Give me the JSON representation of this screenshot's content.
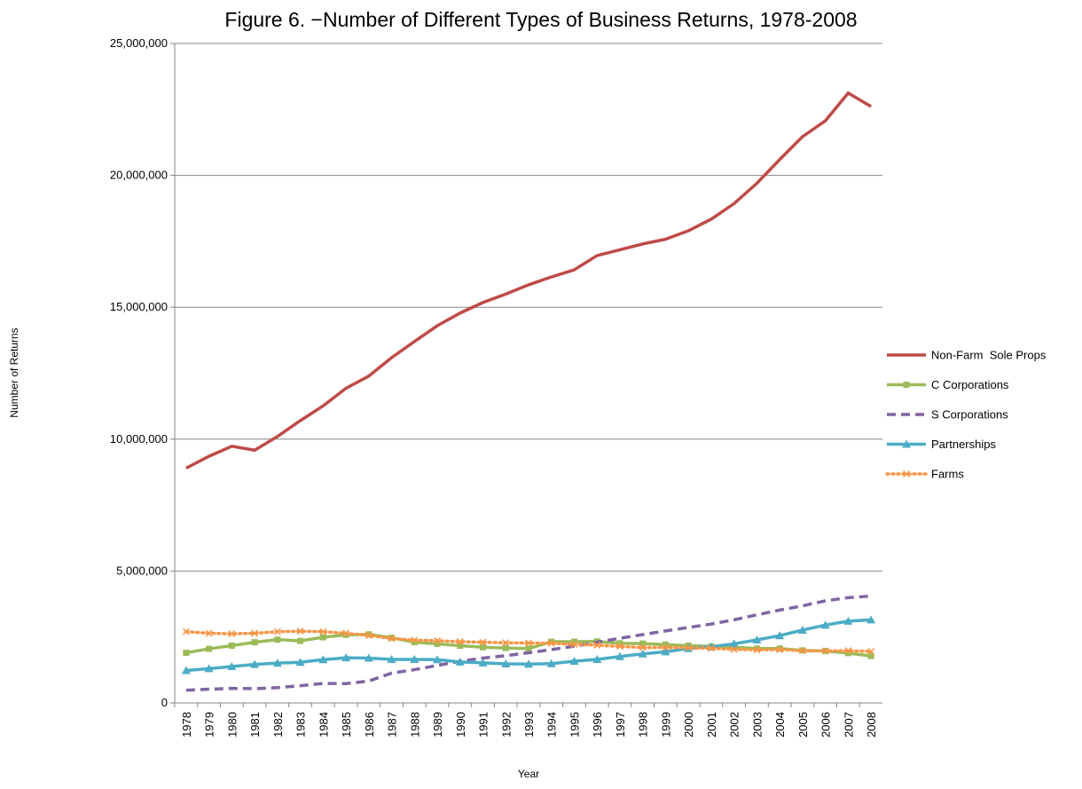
{
  "chart_data": {
    "type": "line",
    "title": "Figure 6. −Number of Different Types of Business Returns, 1978-2008",
    "x_label": "Year",
    "y_label": "Number of Returns",
    "categories": [
      "1978",
      "1979",
      "1980",
      "1981",
      "1982",
      "1983",
      "1984",
      "1985",
      "1986",
      "1987",
      "1988",
      "1989",
      "1990",
      "1991",
      "1992",
      "1993",
      "1994",
      "1995",
      "1996",
      "1997",
      "1998",
      "1999",
      "2000",
      "2001",
      "2002",
      "2003",
      "2004",
      "2005",
      "2006",
      "2007",
      "2008"
    ],
    "ylim": [
      0,
      25000000
    ],
    "yticks": [
      0,
      {
        "value": 5000000,
        "label": "5,000,000"
      },
      {
        "value": 10000000,
        "label": "10,000,000"
      },
      {
        "value": 15000000,
        "label": "15,000,000"
      },
      {
        "value": 20000000,
        "label": "20,000,000"
      },
      {
        "value": 25000000,
        "label": "25,000,000"
      }
    ],
    "grid": true,
    "legend": "right",
    "series": [
      {
        "name": "Non-Farm  Sole Props",
        "color": "#be4b48",
        "dash": "solid",
        "marker": "none",
        "values": [
          8900000,
          9350000,
          9730000,
          9580000,
          10100000,
          10700000,
          11260000,
          11930000,
          12390000,
          13090000,
          13700000,
          14300000,
          14780000,
          15180000,
          15500000,
          15850000,
          16150000,
          16420000,
          16960000,
          17180000,
          17400000,
          17580000,
          17900000,
          18340000,
          18930000,
          19700000,
          20600000,
          21470000,
          22070000,
          23120000,
          22610000
        ]
      },
      {
        "name": "C Corporations",
        "color": "#9bbb59",
        "dash": "solid",
        "marker": "square",
        "values": [
          1900000,
          2050000,
          2170000,
          2300000,
          2400000,
          2350000,
          2490000,
          2580000,
          2600000,
          2470000,
          2300000,
          2240000,
          2170000,
          2110000,
          2080000,
          2060000,
          2320000,
          2320000,
          2330000,
          2260000,
          2250000,
          2210000,
          2170000,
          2140000,
          2110000,
          2060000,
          2060000,
          1990000,
          1970000,
          1890000,
          1780000
        ]
      },
      {
        "name": "S Corporations",
        "color": "#8064a2",
        "dash": "dashed",
        "marker": "none",
        "values": [
          480000,
          520000,
          550000,
          540000,
          580000,
          650000,
          740000,
          730000,
          830000,
          1130000,
          1260000,
          1420000,
          1580000,
          1700000,
          1790000,
          1900000,
          2020000,
          2150000,
          2300000,
          2450000,
          2590000,
          2730000,
          2860000,
          2990000,
          3150000,
          3340000,
          3520000,
          3680000,
          3870000,
          3990000,
          4050000
        ]
      },
      {
        "name": "Partnerships",
        "color": "#4bacc6",
        "dash": "solid",
        "marker": "triangle",
        "values": [
          1230000,
          1300000,
          1380000,
          1460000,
          1510000,
          1540000,
          1640000,
          1710000,
          1700000,
          1650000,
          1650000,
          1640000,
          1550000,
          1520000,
          1480000,
          1470000,
          1490000,
          1580000,
          1650000,
          1760000,
          1860000,
          1940000,
          2060000,
          2130000,
          2240000,
          2390000,
          2550000,
          2760000,
          2950000,
          3100000,
          3150000
        ]
      },
      {
        "name": "Farms",
        "color": "#f79646",
        "dash": "dotted",
        "marker": "x",
        "values": [
          2700000,
          2640000,
          2620000,
          2640000,
          2700000,
          2720000,
          2700000,
          2640000,
          2560000,
          2440000,
          2380000,
          2360000,
          2320000,
          2300000,
          2280000,
          2270000,
          2260000,
          2220000,
          2190000,
          2140000,
          2100000,
          2100000,
          2090000,
          2070000,
          2030000,
          2010000,
          2020000,
          1980000,
          1970000,
          1980000,
          1950000
        ]
      }
    ]
  }
}
